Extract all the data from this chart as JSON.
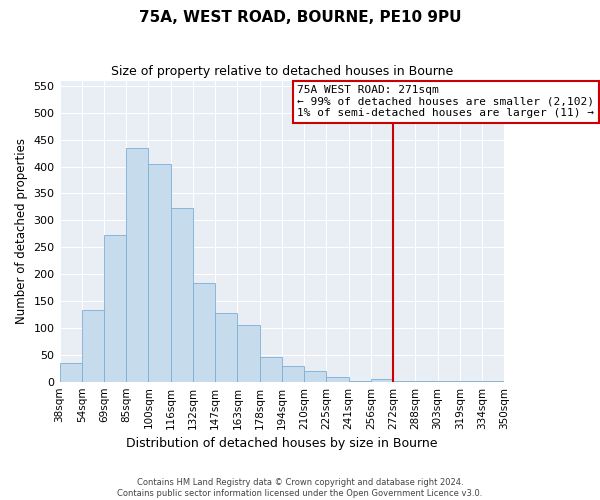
{
  "title": "75A, WEST ROAD, BOURNE, PE10 9PU",
  "subtitle": "Size of property relative to detached houses in Bourne",
  "xlabel": "Distribution of detached houses by size in Bourne",
  "ylabel": "Number of detached properties",
  "bar_color": "#c6dcec",
  "bar_edgecolor": "#7aaed6",
  "vline_color": "#cc0000",
  "ylim": [
    0,
    560
  ],
  "yticks": [
    0,
    50,
    100,
    150,
    200,
    250,
    300,
    350,
    400,
    450,
    500,
    550
  ],
  "bin_labels": [
    "38sqm",
    "54sqm",
    "69sqm",
    "85sqm",
    "100sqm",
    "116sqm",
    "132sqm",
    "147sqm",
    "163sqm",
    "178sqm",
    "194sqm",
    "210sqm",
    "225sqm",
    "241sqm",
    "256sqm",
    "272sqm",
    "288sqm",
    "303sqm",
    "319sqm",
    "334sqm",
    "350sqm"
  ],
  "bar_heights": [
    35,
    133,
    272,
    435,
    405,
    323,
    183,
    128,
    105,
    46,
    30,
    20,
    8,
    2,
    5,
    2,
    2,
    1,
    1,
    1
  ],
  "vline_index": 15,
  "annotation_title": "75A WEST ROAD: 271sqm",
  "annotation_line1": "← 99% of detached houses are smaller (2,102)",
  "annotation_line2": "1% of semi-detached houses are larger (11) →",
  "footer_line1": "Contains HM Land Registry data © Crown copyright and database right 2024.",
  "footer_line2": "Contains public sector information licensed under the Open Government Licence v3.0.",
  "bg_color": "#e8eef4",
  "fig_color": "#ffffff"
}
